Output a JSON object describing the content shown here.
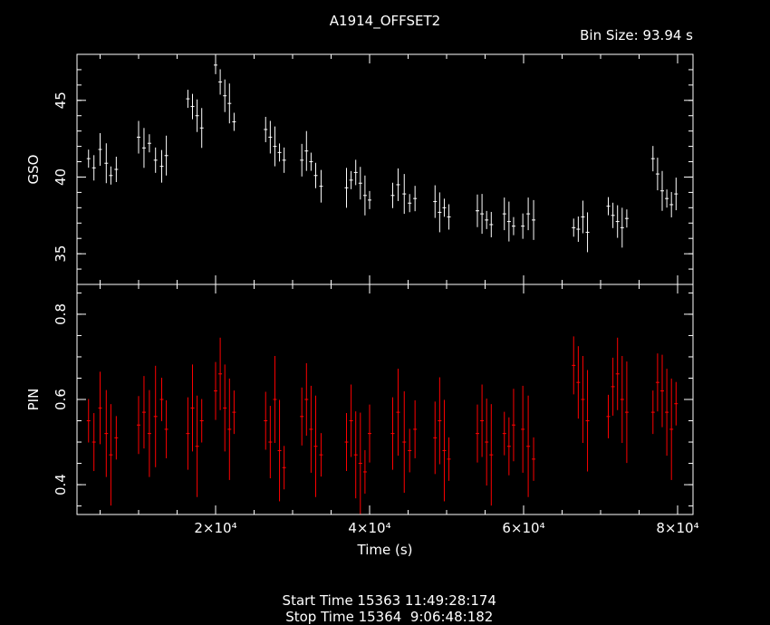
{
  "chart_data": [
    {
      "type": "scatter",
      "panel": "top",
      "title": "A1914_OFFSET2",
      "subtitle": "Bin Size: 93.94 s",
      "xlabel": "Time (s)",
      "ylabel": "GSO",
      "xlim": [
        2000,
        82000
      ],
      "ylim": [
        33,
        48
      ],
      "y_ticks": [
        35,
        40,
        45
      ],
      "color": "#ffffff",
      "series": [
        {
          "points": [
            [
              3500,
              41.2
            ],
            [
              4200,
              40.6
            ],
            [
              5000,
              41.8
            ],
            [
              5800,
              40.9
            ],
            [
              6400,
              40.1
            ],
            [
              7100,
              40.5
            ],
            [
              10000,
              42.6
            ],
            [
              10700,
              41.9
            ],
            [
              11400,
              42.2
            ],
            [
              12200,
              41.1
            ],
            [
              13000,
              40.7
            ],
            [
              13600,
              41.4
            ],
            [
              16400,
              45.1
            ],
            [
              17000,
              44.6
            ],
            [
              17600,
              44.0
            ],
            [
              18200,
              43.2
            ],
            [
              20000,
              47.3
            ],
            [
              20600,
              46.2
            ],
            [
              21200,
              45.3
            ],
            [
              21800,
              44.8
            ],
            [
              22400,
              43.6
            ],
            [
              26500,
              43.1
            ],
            [
              27100,
              42.6
            ],
            [
              27700,
              42.0
            ],
            [
              28300,
              41.6
            ],
            [
              28900,
              41.1
            ],
            [
              31200,
              41.1
            ],
            [
              31800,
              41.7
            ],
            [
              32400,
              41.0
            ],
            [
              33000,
              40.1
            ],
            [
              33700,
              39.4
            ],
            [
              37000,
              39.3
            ],
            [
              37600,
              39.8
            ],
            [
              38200,
              40.3
            ],
            [
              38800,
              39.6
            ],
            [
              39400,
              38.8
            ],
            [
              40000,
              38.5
            ],
            [
              43000,
              38.8
            ],
            [
              43700,
              39.5
            ],
            [
              44500,
              38.9
            ],
            [
              45200,
              38.3
            ],
            [
              45900,
              38.6
            ],
            [
              48500,
              38.4
            ],
            [
              49100,
              37.7
            ],
            [
              49700,
              38.0
            ],
            [
              50300,
              37.4
            ],
            [
              54000,
              37.8
            ],
            [
              54600,
              37.6
            ],
            [
              55200,
              37.2
            ],
            [
              55800,
              36.9
            ],
            [
              57500,
              37.6
            ],
            [
              58100,
              37.1
            ],
            [
              58700,
              36.8
            ],
            [
              59900,
              36.8
            ],
            [
              60600,
              37.6
            ],
            [
              61300,
              37.2
            ],
            [
              66500,
              36.7
            ],
            [
              67100,
              36.6
            ],
            [
              67700,
              37.4
            ],
            [
              68300,
              36.4
            ],
            [
              71000,
              38.1
            ],
            [
              71600,
              37.5
            ],
            [
              72200,
              37.1
            ],
            [
              72800,
              36.7
            ],
            [
              73400,
              37.3
            ],
            [
              76800,
              41.2
            ],
            [
              77400,
              40.2
            ],
            [
              78000,
              39.1
            ],
            [
              78600,
              38.6
            ],
            [
              79200,
              38.2
            ],
            [
              79800,
              38.9
            ]
          ]
        }
      ]
    },
    {
      "type": "scatter",
      "panel": "bottom",
      "xlabel": "Time (s)",
      "ylabel": "PIN",
      "xlim": [
        2000,
        82000
      ],
      "ylim": [
        0.33,
        0.87
      ],
      "y_ticks": [
        0.4,
        0.6,
        0.8
      ],
      "x_ticks": [
        20000,
        40000,
        60000,
        80000
      ],
      "x_tick_labels": [
        "2×10⁴",
        "4×10⁴",
        "6×10⁴",
        "8×10⁴"
      ],
      "color": "#ff0000",
      "series": [
        {
          "points": [
            [
              3500,
              0.55
            ],
            [
              4200,
              0.5
            ],
            [
              5000,
              0.58
            ],
            [
              5800,
              0.52
            ],
            [
              6400,
              0.47
            ],
            [
              7100,
              0.51
            ],
            [
              10000,
              0.54
            ],
            [
              10700,
              0.57
            ],
            [
              11400,
              0.52
            ],
            [
              12200,
              0.56
            ],
            [
              13000,
              0.6
            ],
            [
              13600,
              0.53
            ],
            [
              16400,
              0.52
            ],
            [
              17000,
              0.58
            ],
            [
              17600,
              0.49
            ],
            [
              18200,
              0.55
            ],
            [
              20000,
              0.62
            ],
            [
              20600,
              0.66
            ],
            [
              21200,
              0.58
            ],
            [
              21800,
              0.53
            ],
            [
              22400,
              0.57
            ],
            [
              26500,
              0.55
            ],
            [
              27100,
              0.5
            ],
            [
              27700,
              0.6
            ],
            [
              28300,
              0.48
            ],
            [
              28900,
              0.44
            ],
            [
              31200,
              0.56
            ],
            [
              31800,
              0.6
            ],
            [
              32400,
              0.53
            ],
            [
              33000,
              0.49
            ],
            [
              33700,
              0.47
            ],
            [
              37000,
              0.5
            ],
            [
              37600,
              0.55
            ],
            [
              38200,
              0.47
            ],
            [
              38800,
              0.45
            ],
            [
              39400,
              0.43
            ],
            [
              40000,
              0.52
            ],
            [
              43000,
              0.52
            ],
            [
              43700,
              0.57
            ],
            [
              44500,
              0.5
            ],
            [
              45200,
              0.48
            ],
            [
              45900,
              0.53
            ],
            [
              48500,
              0.51
            ],
            [
              49100,
              0.55
            ],
            [
              49700,
              0.48
            ],
            [
              50300,
              0.46
            ],
            [
              54000,
              0.52
            ],
            [
              54600,
              0.55
            ],
            [
              55200,
              0.5
            ],
            [
              55800,
              0.47
            ],
            [
              57500,
              0.52
            ],
            [
              58100,
              0.49
            ],
            [
              58700,
              0.54
            ],
            [
              59900,
              0.53
            ],
            [
              60600,
              0.49
            ],
            [
              61300,
              0.46
            ],
            [
              66500,
              0.68
            ],
            [
              67100,
              0.64
            ],
            [
              67700,
              0.6
            ],
            [
              68300,
              0.55
            ],
            [
              71000,
              0.56
            ],
            [
              71600,
              0.63
            ],
            [
              72200,
              0.66
            ],
            [
              72800,
              0.6
            ],
            [
              73400,
              0.57
            ],
            [
              76800,
              0.57
            ],
            [
              77400,
              0.64
            ],
            [
              78000,
              0.62
            ],
            [
              78600,
              0.57
            ],
            [
              79200,
              0.53
            ],
            [
              79800,
              0.59
            ]
          ]
        }
      ]
    }
  ],
  "footer": {
    "start": "Start Time 15363 11:49:28:174",
    "stop": "Stop Time 15364  9:06:48:182"
  }
}
